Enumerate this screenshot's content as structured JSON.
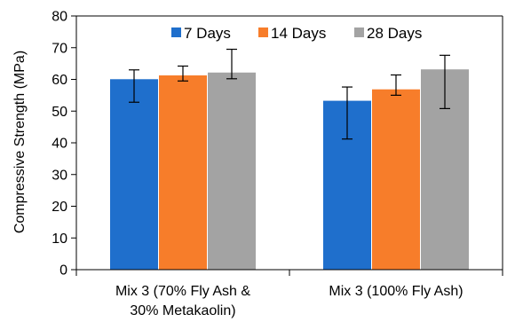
{
  "chart_data": {
    "type": "bar",
    "title": "",
    "xlabel": "",
    "ylabel": "Compressive Strength (MPa)",
    "ylim": [
      0,
      80
    ],
    "yticks": [
      0,
      10,
      20,
      30,
      40,
      50,
      60,
      70,
      80
    ],
    "grid": false,
    "legend_position": "top",
    "categories": [
      [
        "Mix 3 (70% Fly Ash &",
        "30% Metakaolin)"
      ],
      [
        "Mix 3 (100% Fly Ash)"
      ]
    ],
    "series": [
      {
        "name": "7 Days",
        "color": "#1f6fcc",
        "values": [
          60.2,
          53.4
        ],
        "error_low": [
          52.8,
          41.2
        ],
        "error_high": [
          63.0,
          57.6
        ]
      },
      {
        "name": "14 Days",
        "color": "#f77d2a",
        "values": [
          61.4,
          57.0
        ],
        "error_low": [
          59.5,
          55.0
        ],
        "error_high": [
          64.2,
          61.4
        ]
      },
      {
        "name": "28 Days",
        "color": "#a3a3a3",
        "values": [
          62.3,
          63.3
        ],
        "error_low": [
          60.2,
          50.8
        ],
        "error_high": [
          69.5,
          67.6
        ]
      }
    ]
  }
}
